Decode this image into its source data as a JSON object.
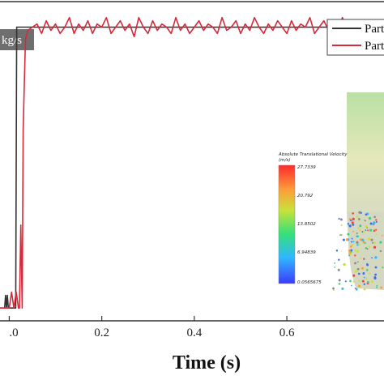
{
  "chart_data": {
    "type": "line",
    "title": "",
    "xlabel": "Time (s)",
    "ylabel": "",
    "unit_box": "kg/s",
    "xlim": [
      -0.02,
      0.81
    ],
    "ylim": [
      0,
      1.0
    ],
    "x_ticks": [
      0.0,
      0.2,
      0.4,
      0.6
    ],
    "x_tick_labels": [
      ".0",
      "0.2",
      "0.4",
      "0.6"
    ],
    "legend_position": "top-right",
    "series": [
      {
        "name": "Part",
        "color": "#333333",
        "x": [
          -0.02,
          -0.01,
          -0.008,
          -0.006,
          -0.004,
          -0.002,
          0.0,
          0.005,
          0.01,
          0.014,
          0.016,
          0.02,
          0.05,
          0.1,
          0.2,
          0.3,
          0.4,
          0.5,
          0.6,
          0.7,
          0.81
        ],
        "y": [
          0.04,
          0.04,
          0.08,
          0.04,
          0.08,
          0.04,
          0.04,
          0.04,
          0.04,
          0.04,
          0.92,
          0.92,
          0.92,
          0.92,
          0.92,
          0.92,
          0.92,
          0.92,
          0.92,
          0.92,
          0.92
        ]
      },
      {
        "name": "Part",
        "color": "#d62a3a",
        "x": [
          -0.02,
          0.0,
          0.005,
          0.01,
          0.015,
          0.02,
          0.022,
          0.025,
          0.028,
          0.03,
          0.035,
          0.04,
          0.05,
          0.06,
          0.07,
          0.08,
          0.09,
          0.1,
          0.11,
          0.12,
          0.13,
          0.14,
          0.15,
          0.16,
          0.17,
          0.18,
          0.19,
          0.2,
          0.21,
          0.22,
          0.23,
          0.24,
          0.25,
          0.26,
          0.27,
          0.28,
          0.29,
          0.3,
          0.31,
          0.32,
          0.33,
          0.34,
          0.35,
          0.36,
          0.37,
          0.38,
          0.39,
          0.4,
          0.41,
          0.42,
          0.43,
          0.44,
          0.45,
          0.46,
          0.47,
          0.48,
          0.49,
          0.5,
          0.51,
          0.52,
          0.53,
          0.54,
          0.55,
          0.56,
          0.57,
          0.58,
          0.59,
          0.6,
          0.61,
          0.62,
          0.63,
          0.64,
          0.65,
          0.66,
          0.67,
          0.68,
          0.69,
          0.7,
          0.71,
          0.72,
          0.73,
          0.74,
          0.75,
          0.76,
          0.77,
          0.78,
          0.79,
          0.8
        ],
        "y": [
          0.04,
          0.04,
          0.09,
          0.04,
          0.09,
          0.04,
          0.04,
          0.3,
          0.04,
          0.6,
          0.88,
          0.91,
          0.92,
          0.93,
          0.9,
          0.94,
          0.91,
          0.93,
          0.9,
          0.92,
          0.95,
          0.9,
          0.93,
          0.91,
          0.94,
          0.9,
          0.93,
          0.92,
          0.95,
          0.9,
          0.92,
          0.94,
          0.91,
          0.93,
          0.89,
          0.95,
          0.92,
          0.9,
          0.94,
          0.91,
          0.93,
          0.92,
          0.9,
          0.95,
          0.91,
          0.93,
          0.9,
          0.92,
          0.94,
          0.91,
          0.93,
          0.92,
          0.9,
          0.95,
          0.91,
          0.92,
          0.94,
          0.9,
          0.93,
          0.91,
          0.95,
          0.92,
          0.9,
          0.93,
          0.91,
          0.94,
          0.92,
          0.9,
          0.94,
          0.91,
          0.93,
          0.92,
          0.95,
          0.9,
          0.92,
          0.94,
          0.91,
          0.93,
          0.9,
          0.95,
          0.92,
          0.91,
          0.93,
          0.94,
          0.9,
          0.92,
          0.93,
          0.91
        ]
      }
    ],
    "inset": {
      "colorbar_title_line1": "Absolute Translational Velocity",
      "colorbar_title_line2": "(m/s)",
      "colorbar_ticks": [
        "27.7339",
        "20.792",
        "13.8502",
        "6.94839",
        "0.0565675"
      ]
    }
  }
}
